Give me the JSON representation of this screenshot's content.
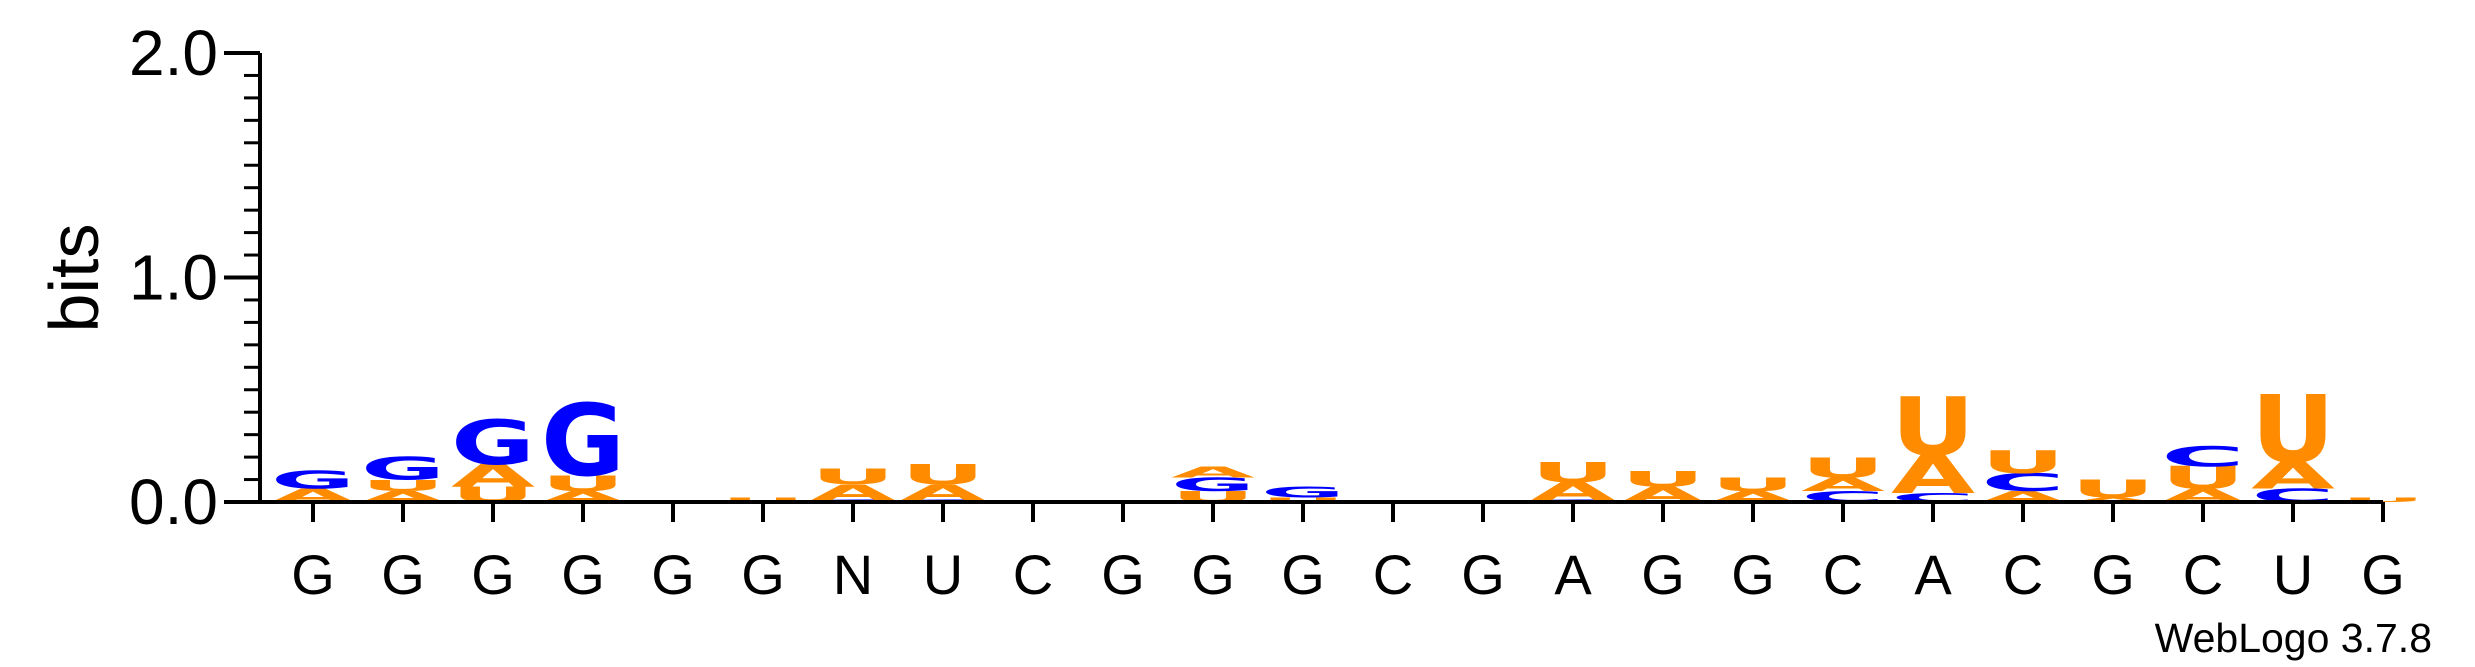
{
  "chart_data": {
    "type": "sequence-logo",
    "ylabel": "bits",
    "ylim": [
      0,
      2.0
    ],
    "yticks": [
      "0.0",
      "1.0",
      "2.0"
    ],
    "footer": "WebLogo 3.7.8",
    "colors": {
      "A": "#ff8c00",
      "U": "#ff8c00",
      "G": "#0000ff",
      "C": "#0000ff"
    },
    "positions": [
      {
        "label": "G",
        "stack": [
          [
            "A",
            0.06
          ],
          [
            "G",
            0.08
          ]
        ]
      },
      {
        "label": "G",
        "stack": [
          [
            "A",
            0.05
          ],
          [
            "U",
            0.05
          ],
          [
            "G",
            0.1
          ]
        ]
      },
      {
        "label": "G",
        "stack": [
          [
            "U",
            0.07
          ],
          [
            "A",
            0.1
          ],
          [
            "G",
            0.2
          ]
        ]
      },
      {
        "label": "G",
        "stack": [
          [
            "A",
            0.05
          ],
          [
            "U",
            0.07
          ],
          [
            "G",
            0.32
          ]
        ]
      },
      {
        "label": "G",
        "stack": []
      },
      {
        "label": "G",
        "stack": [
          [
            "U",
            0.02
          ]
        ]
      },
      {
        "label": "N",
        "stack": [
          [
            "G",
            0.01
          ],
          [
            "A",
            0.07
          ],
          [
            "U",
            0.07
          ]
        ]
      },
      {
        "label": "U",
        "stack": [
          [
            "G",
            0.01
          ],
          [
            "A",
            0.07
          ],
          [
            "U",
            0.09
          ]
        ]
      },
      {
        "label": "C",
        "stack": []
      },
      {
        "label": "G",
        "stack": []
      },
      {
        "label": "G",
        "stack": [
          [
            "U",
            0.05
          ],
          [
            "G",
            0.06
          ],
          [
            "A",
            0.05
          ]
        ]
      },
      {
        "label": "G",
        "stack": [
          [
            "U",
            0.02
          ],
          [
            "G",
            0.05
          ]
        ]
      },
      {
        "label": "C",
        "stack": []
      },
      {
        "label": "G",
        "stack": []
      },
      {
        "label": "A",
        "stack": [
          [
            "G",
            0.01
          ],
          [
            "A",
            0.08
          ],
          [
            "U",
            0.09
          ]
        ]
      },
      {
        "label": "G",
        "stack": [
          [
            "A",
            0.07
          ],
          [
            "U",
            0.07
          ]
        ]
      },
      {
        "label": "G",
        "stack": [
          [
            "A",
            0.05
          ],
          [
            "U",
            0.06
          ]
        ]
      },
      {
        "label": "C",
        "stack": [
          [
            "C",
            0.05
          ],
          [
            "A",
            0.06
          ],
          [
            "U",
            0.09
          ]
        ]
      },
      {
        "label": "A",
        "stack": [
          [
            "C",
            0.04
          ],
          [
            "A",
            0.17
          ],
          [
            "U",
            0.26
          ]
        ]
      },
      {
        "label": "C",
        "stack": [
          [
            "A",
            0.05
          ],
          [
            "C",
            0.08
          ],
          [
            "U",
            0.1
          ]
        ]
      },
      {
        "label": "G",
        "stack": [
          [
            "A",
            0.02
          ],
          [
            "U",
            0.08
          ]
        ]
      },
      {
        "label": "C",
        "stack": [
          [
            "A",
            0.06
          ],
          [
            "U",
            0.1
          ],
          [
            "C",
            0.09
          ]
        ]
      },
      {
        "label": "U",
        "stack": [
          [
            "C",
            0.06
          ],
          [
            "A",
            0.12
          ],
          [
            "U",
            0.3
          ]
        ]
      },
      {
        "label": "G",
        "stack": [
          [
            "U",
            0.02
          ]
        ]
      }
    ]
  }
}
